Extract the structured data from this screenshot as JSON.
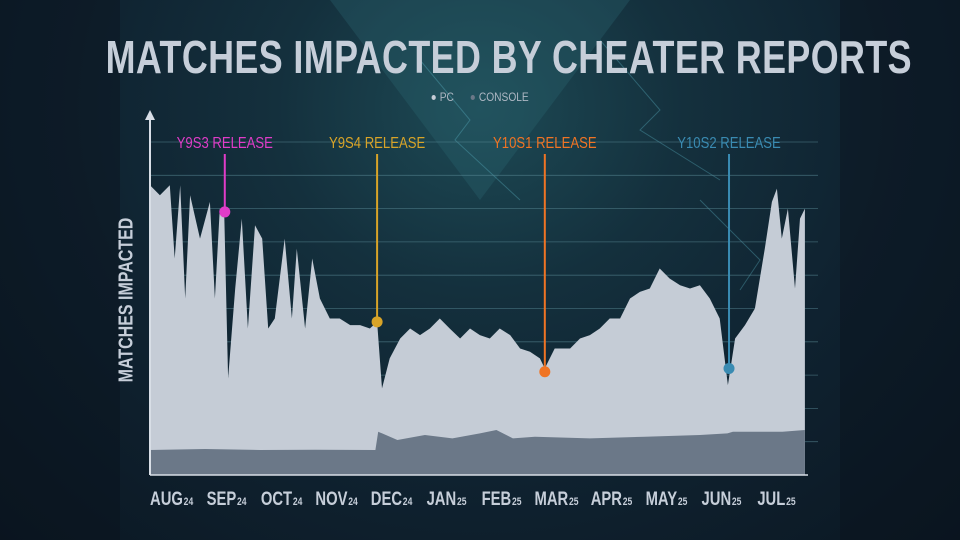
{
  "title": "MATCHES IMPACTED BY CHEATER REPORTS",
  "legend": [
    {
      "label": "PC",
      "color": "#c5ccd6"
    },
    {
      "label": "CONSOLE",
      "color": "#6b7888"
    }
  ],
  "chart_data": {
    "type": "area",
    "title": "MATCHES IMPACTED BY CHEATER REPORTS",
    "ylabel": "MATCHES IMPACTED",
    "xlabel": "",
    "x_unit": "months since start of Aug 2024",
    "xlim": [
      0,
      11.93
    ],
    "ylim": [
      0,
      100
    ],
    "y_units": "relative (unlabeled axis)",
    "grid": true,
    "legend_placement": "top-center",
    "months": [
      {
        "m": "AUG",
        "y": "24"
      },
      {
        "m": "SEP",
        "y": "24"
      },
      {
        "m": "OCT",
        "y": "24"
      },
      {
        "m": "NOV",
        "y": "24"
      },
      {
        "m": "DEC",
        "y": "24"
      },
      {
        "m": "JAN",
        "y": "25"
      },
      {
        "m": "FEB",
        "y": "25"
      },
      {
        "m": "MAR",
        "y": "25"
      },
      {
        "m": "APR",
        "y": "25"
      },
      {
        "m": "MAY",
        "y": "25"
      },
      {
        "m": "JUN",
        "y": "25"
      },
      {
        "m": "JUL",
        "y": "25"
      }
    ],
    "series": [
      {
        "name": "PC",
        "color": "#c5ccd6",
        "x": [
          0,
          0.18,
          0.36,
          0.45,
          0.55,
          0.64,
          0.73,
          0.91,
          1.09,
          1.18,
          1.27,
          1.35,
          1.42,
          1.55,
          1.67,
          1.78,
          1.91,
          2.04,
          2.15,
          2.27,
          2.45,
          2.58,
          2.67,
          2.82,
          2.95,
          3.09,
          3.27,
          3.45,
          3.64,
          3.82,
          4.0,
          4.13,
          4.22,
          4.36,
          4.55,
          4.73,
          4.91,
          5.09,
          5.27,
          5.45,
          5.64,
          5.82,
          6.0,
          6.18,
          6.36,
          6.55,
          6.73,
          6.91,
          7.09,
          7.18,
          7.36,
          7.64,
          7.82,
          8.0,
          8.18,
          8.36,
          8.55,
          8.73,
          8.91,
          9.09,
          9.27,
          9.45,
          9.64,
          9.82,
          10.0,
          10.18,
          10.36,
          10.51,
          10.64,
          10.82,
          11.0,
          11.18,
          11.31,
          11.4,
          11.49,
          11.6,
          11.73,
          11.82,
          11.91
        ],
        "y": [
          87,
          84,
          87,
          65,
          87,
          53,
          84,
          71,
          82,
          53,
          80,
          79,
          29,
          56,
          77,
          44,
          75,
          71,
          44,
          47,
          71,
          47,
          68,
          44,
          65,
          53,
          47,
          47,
          45,
          45,
          44,
          46,
          26,
          35,
          41,
          44,
          42,
          44,
          47,
          44,
          41,
          44,
          42,
          41,
          44,
          42,
          38,
          37,
          35,
          32,
          38,
          38,
          41,
          42,
          44,
          47,
          47,
          53,
          55,
          56,
          62,
          59,
          57,
          56,
          57,
          53,
          47,
          27,
          41,
          45,
          50,
          68,
          82,
          86,
          71,
          80,
          56,
          77,
          80
        ]
      },
      {
        "name": "CONSOLE",
        "color": "#6b7888",
        "x": [
          0,
          1,
          2,
          3,
          4.1,
          4.15,
          4.5,
          5,
          5.5,
          6,
          6.3,
          6.6,
          7,
          8,
          9,
          10,
          10.5,
          10.6,
          11.5,
          11.91
        ],
        "y": [
          7.5,
          7.8,
          7.5,
          7.6,
          7.5,
          13,
          10.5,
          12,
          11,
          12.5,
          13.5,
          11,
          11.5,
          11,
          11.5,
          12,
          12.5,
          13,
          13,
          13.5
        ]
      }
    ],
    "annotations": [
      {
        "label": "Y9S3 RELEASE",
        "x": 1.36,
        "y": 79,
        "color": "#e03cc8"
      },
      {
        "label": "Y9S4 RELEASE",
        "x": 4.13,
        "y": 46,
        "color": "#d8a428"
      },
      {
        "label": "Y10S1 RELEASE",
        "x": 7.18,
        "y": 31,
        "color": "#f07424"
      },
      {
        "label": "Y10S2 RELEASE",
        "x": 10.53,
        "y": 32,
        "color": "#3a8bb2"
      }
    ]
  }
}
